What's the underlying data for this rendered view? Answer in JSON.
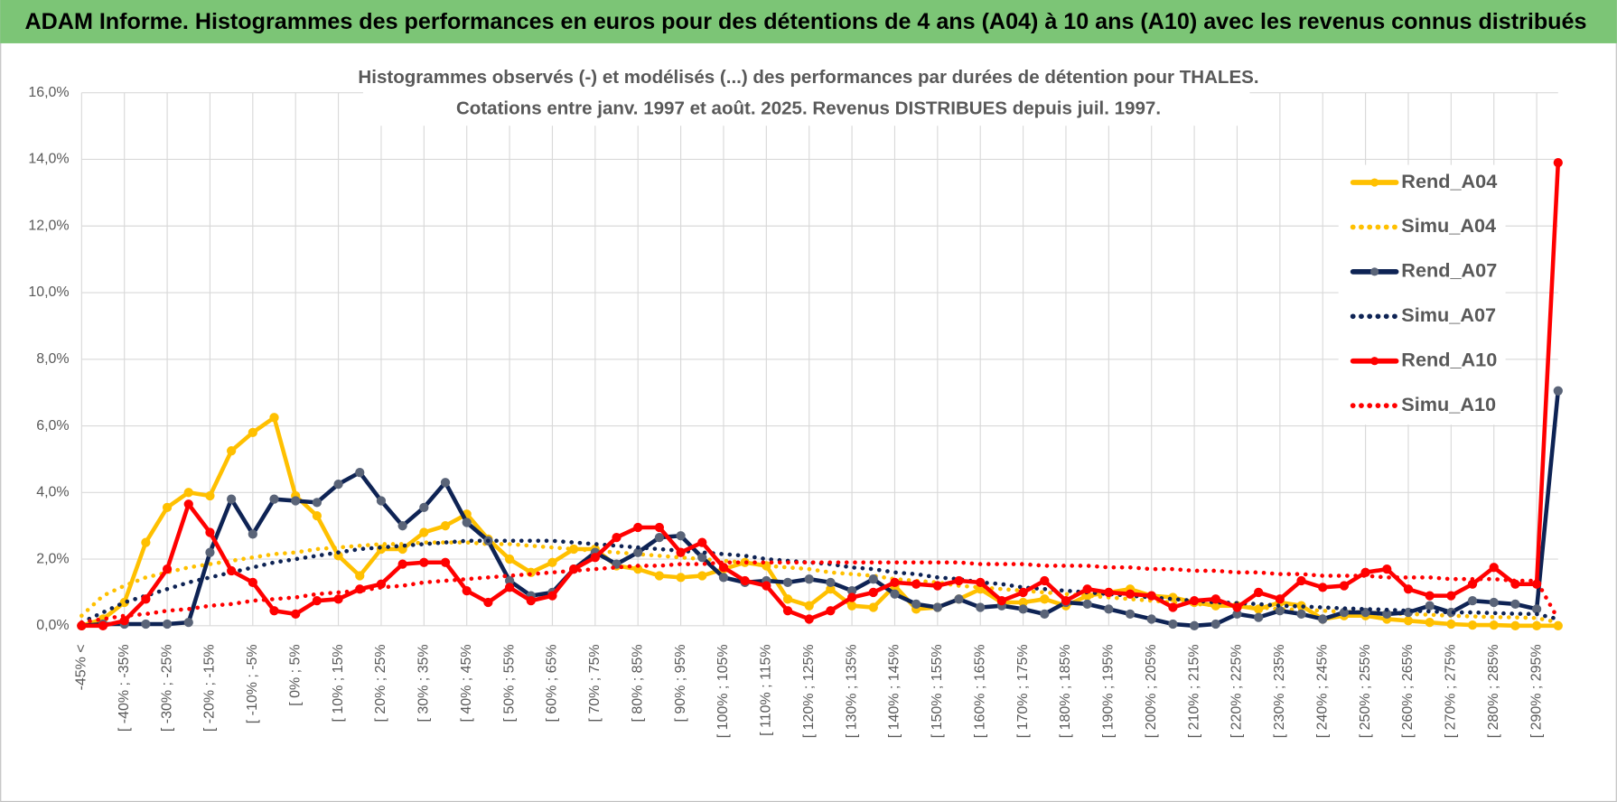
{
  "chart_data": {
    "type": "line",
    "header": "ADAM Informe. Histogrammes des performances en euros pour des détentions de 4 ans (A04) à 10 ans (A10) avec les revenus connus distribués",
    "title": "Histogrammes observés (-) et modélisés (...) des performances par durées de détention pour THALES.",
    "subtitle": "Cotations entre janv. 1997 et août. 2025. Revenus DISTRIBUES depuis juil. 1997.",
    "categories": [
      "-45% <",
      null,
      "[ -40% ; -35%",
      null,
      "[ -30% ; -25%",
      null,
      "[ -20% ; -15%",
      null,
      "[ -10% ; -5%",
      null,
      "[ 0% ; 5%",
      null,
      "[ 10% ; 15%",
      null,
      "[ 20% ; 25%",
      null,
      "[ 30% ; 35%",
      null,
      "[ 40% ; 45%",
      null,
      "[ 50% ; 55%",
      null,
      "[ 60% ; 65%",
      null,
      "[ 70% ; 75%",
      null,
      "[ 80% ; 85%",
      null,
      "[ 90% ; 95%",
      null,
      "[ 100% ; 105%",
      null,
      "[ 110% ; 115%",
      null,
      "[ 120% ; 125%",
      null,
      "[ 130% ; 135%",
      null,
      "[ 140% ; 145%",
      null,
      "[ 150% ; 155%",
      null,
      "[ 160% ; 165%",
      null,
      "[ 170% ; 175%",
      null,
      "[ 180% ; 185%",
      null,
      "[ 190% ; 195%",
      null,
      "[ 200% ; 205%",
      null,
      "[ 210% ; 215%",
      null,
      "[ 220% ; 225%",
      null,
      "[ 230% ; 235%",
      null,
      "[ 240% ; 245%",
      null,
      "[ 250% ; 255%",
      null,
      "[ 260% ; 265%",
      null,
      "[ 270% ; 275%",
      null,
      "[ 280% ; 285%",
      null,
      "[ 290% ; 295%",
      null
    ],
    "series": [
      {
        "name": "Rend_A04",
        "color": "#ffc000",
        "line_style": "solid",
        "markers": true,
        "values": [
          0,
          0.2,
          0.7,
          2.5,
          3.55,
          4.0,
          3.9,
          5.25,
          5.8,
          6.25,
          3.9,
          3.3,
          2.1,
          1.5,
          2.3,
          2.3,
          2.8,
          3.0,
          3.35,
          2.6,
          2.0,
          1.6,
          1.9,
          2.3,
          2.3,
          1.8,
          1.7,
          1.5,
          1.45,
          1.5,
          1.7,
          1.9,
          1.8,
          0.8,
          0.6,
          1.1,
          0.6,
          0.55,
          1.2,
          0.5,
          0.55,
          0.8,
          1.1,
          0.7,
          0.7,
          0.8,
          0.6,
          0.9,
          1.0,
          1.1,
          0.9,
          0.85,
          0.7,
          0.6,
          0.6,
          0.5,
          0.7,
          0.6,
          0.2,
          0.3,
          0.3,
          0.2,
          0.15,
          0.1,
          0.05,
          0.02,
          0.02,
          0,
          0,
          0
        ]
      },
      {
        "name": "Simu_A04",
        "color": "#ffc000",
        "line_style": "dotted",
        "markers": false,
        "values": [
          0.3,
          0.9,
          1.2,
          1.45,
          1.6,
          1.75,
          1.85,
          1.95,
          2.05,
          2.15,
          2.2,
          2.3,
          2.35,
          2.4,
          2.45,
          2.45,
          2.5,
          2.5,
          2.5,
          2.45,
          2.45,
          2.4,
          2.35,
          2.3,
          2.25,
          2.2,
          2.15,
          2.1,
          2.05,
          2.0,
          1.95,
          1.9,
          1.8,
          1.75,
          1.7,
          1.6,
          1.55,
          1.5,
          1.4,
          1.35,
          1.3,
          1.2,
          1.15,
          1.1,
          1.05,
          1.0,
          0.95,
          0.9,
          0.85,
          0.8,
          0.75,
          0.7,
          0.65,
          0.62,
          0.58,
          0.55,
          0.5,
          0.48,
          0.45,
          0.42,
          0.4,
          0.37,
          0.35,
          0.33,
          0.3,
          0.28,
          0.26,
          0.25,
          0.23,
          0.1
        ]
      },
      {
        "name": "Rend_A07",
        "color": "#0e2354",
        "marker_color": "#5a6478",
        "line_style": "solid",
        "markers": true,
        "values": [
          0,
          0.05,
          0.05,
          0.05,
          0.05,
          0.1,
          2.2,
          3.8,
          2.75,
          3.8,
          3.75,
          3.7,
          4.25,
          4.6,
          3.75,
          3.0,
          3.55,
          4.3,
          3.1,
          2.55,
          1.35,
          0.9,
          1.0,
          1.7,
          2.2,
          1.85,
          2.2,
          2.65,
          2.7,
          2.05,
          1.45,
          1.3,
          1.35,
          1.3,
          1.4,
          1.3,
          1.05,
          1.4,
          0.95,
          0.65,
          0.55,
          0.8,
          0.55,
          0.6,
          0.5,
          0.35,
          0.7,
          0.65,
          0.5,
          0.35,
          0.2,
          0.05,
          0,
          0.05,
          0.35,
          0.25,
          0.45,
          0.35,
          0.2,
          0.4,
          0.4,
          0.35,
          0.4,
          0.6,
          0.4,
          0.75,
          0.7,
          0.65,
          0.5,
          7.05
        ]
      },
      {
        "name": "Simu_A07",
        "color": "#0e2354",
        "line_style": "dotted",
        "markers": false,
        "values": [
          0.1,
          0.4,
          0.7,
          0.9,
          1.1,
          1.3,
          1.45,
          1.6,
          1.75,
          1.9,
          2.0,
          2.1,
          2.2,
          2.3,
          2.35,
          2.4,
          2.45,
          2.5,
          2.55,
          2.55,
          2.55,
          2.55,
          2.55,
          2.5,
          2.45,
          2.4,
          2.35,
          2.3,
          2.25,
          2.2,
          2.15,
          2.1,
          2.0,
          1.95,
          1.9,
          1.85,
          1.75,
          1.7,
          1.6,
          1.55,
          1.45,
          1.4,
          1.3,
          1.25,
          1.15,
          1.1,
          1.05,
          1.0,
          0.95,
          0.9,
          0.85,
          0.8,
          0.75,
          0.7,
          0.68,
          0.65,
          0.6,
          0.58,
          0.55,
          0.52,
          0.5,
          0.48,
          0.45,
          0.43,
          0.4,
          0.4,
          0.38,
          0.36,
          0.35,
          0.2
        ]
      },
      {
        "name": "Rend_A10",
        "color": "#ff0000",
        "line_style": "solid",
        "markers": true,
        "values": [
          0,
          0,
          0.15,
          0.8,
          1.7,
          3.65,
          2.8,
          1.65,
          1.3,
          0.45,
          0.35,
          0.75,
          0.8,
          1.1,
          1.25,
          1.85,
          1.9,
          1.9,
          1.05,
          0.7,
          1.15,
          0.75,
          0.9,
          1.7,
          2.05,
          2.65,
          2.95,
          2.95,
          2.2,
          2.5,
          1.75,
          1.35,
          1.2,
          0.45,
          0.2,
          0.45,
          0.85,
          1.0,
          1.3,
          1.25,
          1.2,
          1.35,
          1.3,
          0.75,
          1.0,
          1.35,
          0.75,
          1.1,
          1.0,
          0.95,
          0.9,
          0.55,
          0.75,
          0.8,
          0.55,
          1.0,
          0.8,
          1.35,
          1.15,
          1.2,
          1.6,
          1.7,
          1.1,
          0.9,
          0.9,
          1.25,
          1.75,
          1.25,
          1.25,
          13.9
        ]
      },
      {
        "name": "Simu_A10",
        "color": "#ff0000",
        "line_style": "dotted",
        "markers": false,
        "values": [
          0.1,
          0.2,
          0.3,
          0.35,
          0.45,
          0.5,
          0.6,
          0.65,
          0.75,
          0.8,
          0.85,
          0.95,
          1.0,
          1.05,
          1.15,
          1.2,
          1.3,
          1.35,
          1.4,
          1.45,
          1.5,
          1.55,
          1.6,
          1.65,
          1.7,
          1.75,
          1.8,
          1.8,
          1.85,
          1.85,
          1.9,
          1.9,
          1.9,
          1.9,
          1.9,
          1.9,
          1.9,
          1.9,
          1.9,
          1.9,
          1.9,
          1.9,
          1.85,
          1.85,
          1.85,
          1.8,
          1.8,
          1.8,
          1.75,
          1.75,
          1.7,
          1.7,
          1.65,
          1.65,
          1.6,
          1.6,
          1.55,
          1.55,
          1.5,
          1.5,
          1.5,
          1.45,
          1.45,
          1.45,
          1.4,
          1.4,
          1.4,
          1.35,
          1.35,
          0.2
        ]
      }
    ],
    "ylim": [
      0,
      16
    ],
    "yticks": [
      {
        "value": 0,
        "label": "0,0%"
      },
      {
        "value": 2,
        "label": "2,0%"
      },
      {
        "value": 4,
        "label": "4,0%"
      },
      {
        "value": 6,
        "label": "6,0%"
      },
      {
        "value": 8,
        "label": "8,0%"
      },
      {
        "value": 10,
        "label": "10,0%"
      },
      {
        "value": 12,
        "label": "12,0%"
      },
      {
        "value": 14,
        "label": "14,0%"
      },
      {
        "value": 16,
        "label": "16,0%"
      }
    ],
    "grid": true,
    "legend": "right"
  }
}
